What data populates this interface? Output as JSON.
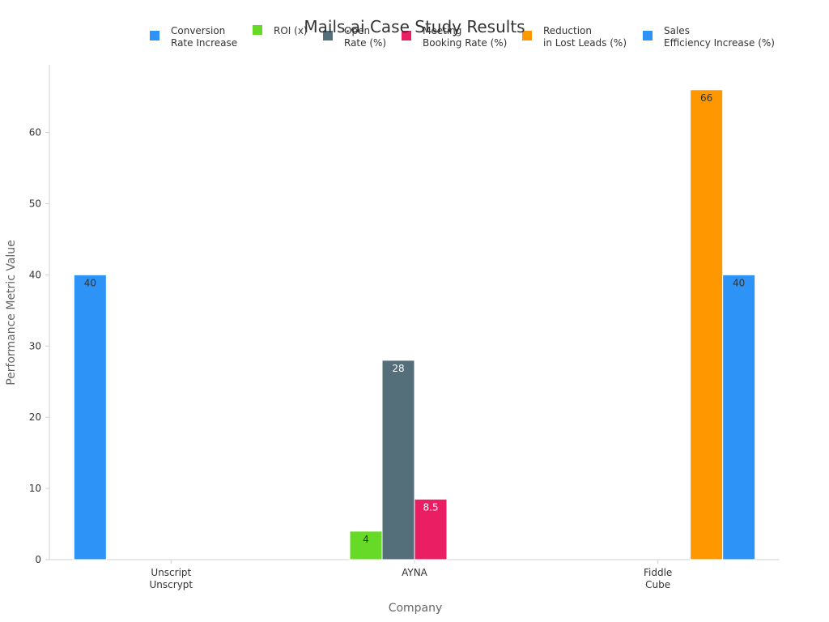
{
  "chart_data": {
    "type": "bar",
    "title": "Mails.ai Case Study Results",
    "xlabel": "Company",
    "ylabel": "Performance Metric Value",
    "ylim": [
      0,
      69.5
    ],
    "yticks": [
      0,
      10,
      20,
      30,
      40,
      50,
      60
    ],
    "grid": false,
    "legend_position": "top",
    "categories": [
      [
        "Unscript",
        "Unscrypt"
      ],
      [
        "AYNA"
      ],
      [
        "Fiddle",
        "Cube"
      ]
    ],
    "series": [
      {
        "name": [
          "Conversion",
          "Rate Increase"
        ],
        "color": "#2E93F6",
        "label_color": "#333333",
        "values": [
          40,
          null,
          null
        ]
      },
      {
        "name": [
          "ROI (x)"
        ],
        "color": "#66DA26",
        "label_color": "#333333",
        "values": [
          null,
          4,
          null
        ]
      },
      {
        "name": [
          "Open",
          "Rate (%)"
        ],
        "color": "#546E7A",
        "label_color": "#ffffff",
        "values": [
          null,
          28,
          null
        ]
      },
      {
        "name": [
          "Meeting",
          "Booking Rate (%)"
        ],
        "color": "#E91E63",
        "label_color": "#ffffff",
        "values": [
          null,
          8.5,
          null
        ]
      },
      {
        "name": [
          "Reduction",
          "in Lost Leads (%)"
        ],
        "color": "#FF9800",
        "label_color": "#333333",
        "values": [
          null,
          null,
          66
        ]
      },
      {
        "name": [
          "Sales",
          "Efficiency Increase (%)"
        ],
        "color": "#2E93F6",
        "label_color": "#333333",
        "values": [
          null,
          null,
          40
        ]
      }
    ]
  }
}
